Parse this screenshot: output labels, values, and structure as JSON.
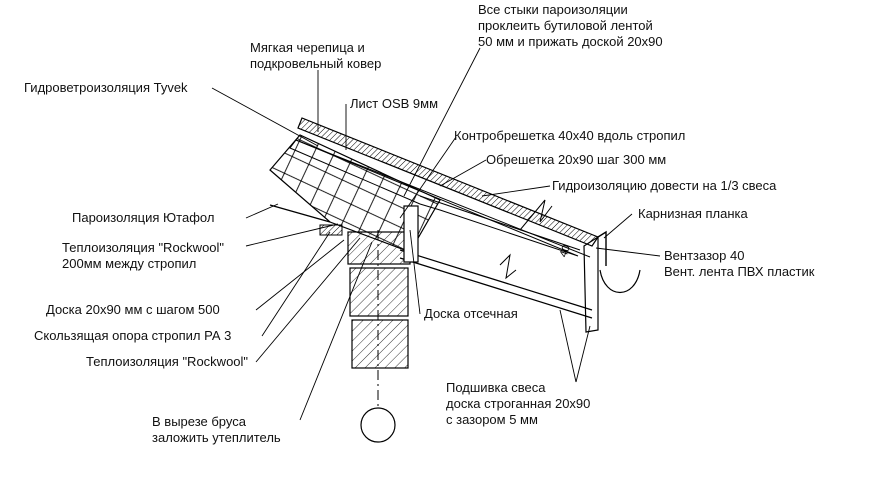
{
  "labels": {
    "roof_covering": "Мягкая черепица и\nподкровельный ковер",
    "vapor_joints": "Все стыки пароизоляции\nпроклеить бутиловой лентой\n50 мм и прижать доской 20х90",
    "wind_membrane": "Гидроветроизоляция Tyvek",
    "osb": "Лист OSB 9мм",
    "counter_batten": "Контробрешетка 40х40 вдоль стропил",
    "batten": "Обрешетка 20х90 шаг 300 мм",
    "waterproofing": "Гидроизоляцию довести на 1/3 свеса",
    "eave_strip": "Карнизная планка",
    "vapor_barrier": "Пароизоляция Ютафол",
    "insulation_rafters": "Теплоизоляция \"Rockwool\"\n200мм между стропил",
    "vent_gap": "Вентзазор 40\nВент. лента ПВХ пластик",
    "board_500": "Доска 20х90 мм с шагом 500",
    "sliding_support": "Скользящая опора стропил РА 3",
    "cutoff_board": "Доска отсечная",
    "insulation": "Теплоизоляция \"Rockwool\"",
    "soffit": "Подшивка свеса\nдоска строганная 20х90\nс зазором 5 мм",
    "beam_cutout": "В вырезе бруса\nзаложить утеплитель"
  },
  "dimension_40": "40"
}
